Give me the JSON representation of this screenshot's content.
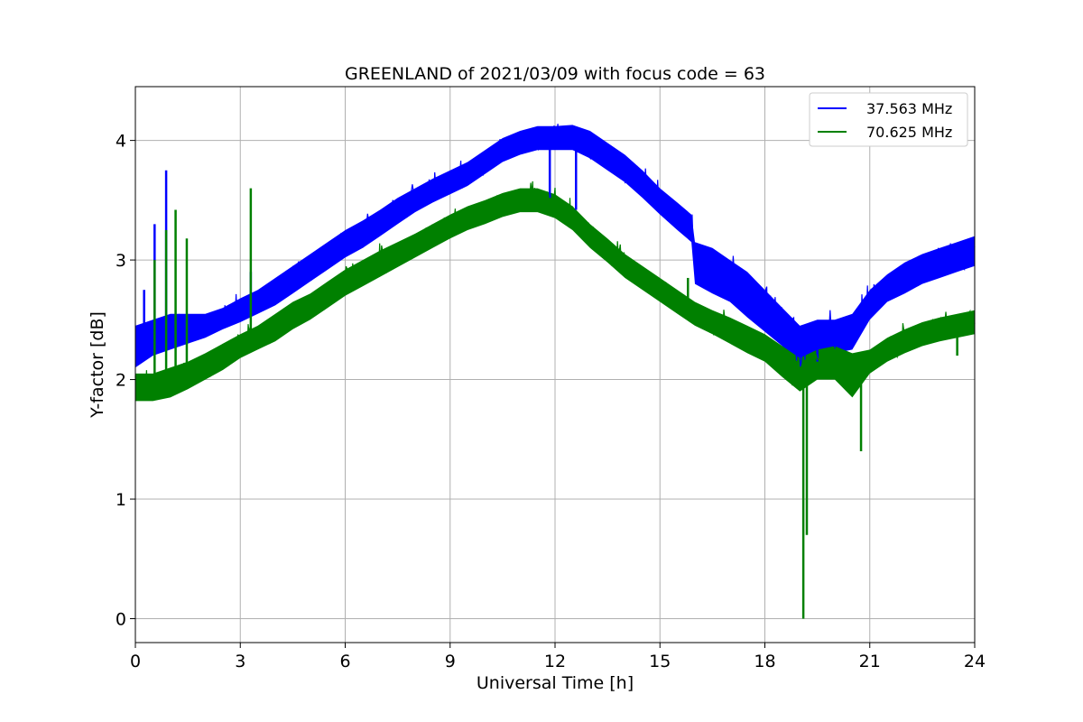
{
  "chart_data": {
    "type": "line",
    "title": "GREENLAND of 2021/03/09 with focus code = 63",
    "xlabel": "Universal Time [h]",
    "ylabel": "Y-factor [dB]",
    "xlim": [
      0,
      24
    ],
    "ylim": [
      -0.2,
      4.45
    ],
    "xticks": [
      0,
      3,
      6,
      9,
      12,
      15,
      18,
      21,
      24
    ],
    "yticks": [
      0,
      1,
      2,
      3,
      4
    ],
    "grid": true,
    "legend_position": "top-right",
    "series": [
      {
        "name": "37.563 MHz",
        "color": "#0000ff",
        "band_upper": [
          [
            0,
            2.45
          ],
          [
            0.5,
            2.5
          ],
          [
            1,
            2.55
          ],
          [
            1.5,
            2.55
          ],
          [
            2,
            2.55
          ],
          [
            2.5,
            2.6
          ],
          [
            3,
            2.68
          ],
          [
            3.5,
            2.75
          ],
          [
            4,
            2.85
          ],
          [
            4.5,
            2.95
          ],
          [
            5,
            3.05
          ],
          [
            5.5,
            3.15
          ],
          [
            6,
            3.25
          ],
          [
            6.5,
            3.33
          ],
          [
            7,
            3.42
          ],
          [
            7.5,
            3.52
          ],
          [
            8,
            3.6
          ],
          [
            8.5,
            3.68
          ],
          [
            9,
            3.75
          ],
          [
            9.5,
            3.82
          ],
          [
            10,
            3.92
          ],
          [
            10.5,
            4.02
          ],
          [
            11,
            4.08
          ],
          [
            11.5,
            4.12
          ],
          [
            12,
            4.12
          ],
          [
            12.5,
            4.13
          ],
          [
            13,
            4.08
          ],
          [
            13.5,
            3.98
          ],
          [
            14,
            3.88
          ],
          [
            14.5,
            3.75
          ],
          [
            15,
            3.6
          ],
          [
            15.5,
            3.48
          ],
          [
            15.9,
            3.38
          ],
          [
            16,
            3.15
          ],
          [
            16.5,
            3.1
          ],
          [
            17,
            3.0
          ],
          [
            17.5,
            2.9
          ],
          [
            18,
            2.75
          ],
          [
            18.5,
            2.6
          ],
          [
            19,
            2.45
          ],
          [
            19.5,
            2.5
          ],
          [
            20,
            2.5
          ],
          [
            20.5,
            2.55
          ],
          [
            21,
            2.75
          ],
          [
            21.5,
            2.88
          ],
          [
            22,
            2.98
          ],
          [
            22.5,
            3.05
          ],
          [
            23,
            3.1
          ],
          [
            23.5,
            3.15
          ],
          [
            24,
            3.2
          ]
        ],
        "band_lower": [
          [
            0,
            2.1
          ],
          [
            0.5,
            2.2
          ],
          [
            1,
            2.25
          ],
          [
            1.5,
            2.3
          ],
          [
            2,
            2.35
          ],
          [
            2.5,
            2.42
          ],
          [
            3,
            2.48
          ],
          [
            3.5,
            2.55
          ],
          [
            4,
            2.62
          ],
          [
            4.5,
            2.72
          ],
          [
            5,
            2.82
          ],
          [
            5.5,
            2.92
          ],
          [
            6,
            3.02
          ],
          [
            6.5,
            3.1
          ],
          [
            7,
            3.2
          ],
          [
            7.5,
            3.3
          ],
          [
            8,
            3.4
          ],
          [
            8.5,
            3.48
          ],
          [
            9,
            3.55
          ],
          [
            9.5,
            3.62
          ],
          [
            10,
            3.72
          ],
          [
            10.5,
            3.82
          ],
          [
            11,
            3.88
          ],
          [
            11.5,
            3.92
          ],
          [
            12,
            3.92
          ],
          [
            12.5,
            3.92
          ],
          [
            13,
            3.85
          ],
          [
            13.5,
            3.75
          ],
          [
            14,
            3.65
          ],
          [
            14.5,
            3.52
          ],
          [
            15,
            3.38
          ],
          [
            15.5,
            3.25
          ],
          [
            15.9,
            3.15
          ],
          [
            16,
            2.8
          ],
          [
            16.5,
            2.72
          ],
          [
            17,
            2.65
          ],
          [
            17.5,
            2.52
          ],
          [
            18,
            2.4
          ],
          [
            18.5,
            2.28
          ],
          [
            19,
            2.1
          ],
          [
            19.5,
            2.2
          ],
          [
            20,
            2.22
          ],
          [
            20.5,
            2.25
          ],
          [
            21,
            2.5
          ],
          [
            21.5,
            2.65
          ],
          [
            22,
            2.72
          ],
          [
            22.5,
            2.8
          ],
          [
            23,
            2.85
          ],
          [
            23.5,
            2.9
          ],
          [
            24,
            2.95
          ]
        ],
        "spikes": [
          [
            0.55,
            3.3
          ],
          [
            0.88,
            3.75
          ],
          [
            0.25,
            2.75
          ],
          [
            3.3,
            2.9
          ],
          [
            12.6,
            3.42
          ],
          [
            11.85,
            3.52
          ],
          [
            19.5,
            2.15
          ]
        ]
      },
      {
        "name": "70.625 MHz",
        "color": "#008000",
        "band_upper": [
          [
            0,
            2.05
          ],
          [
            0.5,
            2.05
          ],
          [
            1,
            2.1
          ],
          [
            1.5,
            2.15
          ],
          [
            2,
            2.22
          ],
          [
            2.5,
            2.3
          ],
          [
            3,
            2.38
          ],
          [
            3.5,
            2.45
          ],
          [
            4,
            2.55
          ],
          [
            4.5,
            2.65
          ],
          [
            5,
            2.72
          ],
          [
            5.5,
            2.82
          ],
          [
            6,
            2.92
          ],
          [
            6.5,
            3.0
          ],
          [
            7,
            3.08
          ],
          [
            7.5,
            3.15
          ],
          [
            8,
            3.22
          ],
          [
            8.5,
            3.3
          ],
          [
            9,
            3.38
          ],
          [
            9.5,
            3.45
          ],
          [
            10,
            3.5
          ],
          [
            10.5,
            3.56
          ],
          [
            11,
            3.6
          ],
          [
            11.5,
            3.6
          ],
          [
            12,
            3.55
          ],
          [
            12.5,
            3.45
          ],
          [
            13,
            3.3
          ],
          [
            13.5,
            3.18
          ],
          [
            14,
            3.05
          ],
          [
            14.5,
            2.95
          ],
          [
            15,
            2.85
          ],
          [
            15.5,
            2.75
          ],
          [
            16,
            2.65
          ],
          [
            16.5,
            2.58
          ],
          [
            17,
            2.52
          ],
          [
            17.5,
            2.45
          ],
          [
            18,
            2.38
          ],
          [
            18.5,
            2.28
          ],
          [
            19,
            2.18
          ],
          [
            19.5,
            2.25
          ],
          [
            20,
            2.28
          ],
          [
            20.5,
            2.22
          ],
          [
            21,
            2.25
          ],
          [
            21.5,
            2.35
          ],
          [
            22,
            2.42
          ],
          [
            22.5,
            2.48
          ],
          [
            23,
            2.52
          ],
          [
            23.5,
            2.55
          ],
          [
            24,
            2.58
          ]
        ],
        "band_lower": [
          [
            0,
            1.82
          ],
          [
            0.5,
            1.82
          ],
          [
            1,
            1.85
          ],
          [
            1.5,
            1.92
          ],
          [
            2,
            2.0
          ],
          [
            2.5,
            2.08
          ],
          [
            3,
            2.18
          ],
          [
            3.5,
            2.25
          ],
          [
            4,
            2.32
          ],
          [
            4.5,
            2.42
          ],
          [
            5,
            2.5
          ],
          [
            5.5,
            2.6
          ],
          [
            6,
            2.7
          ],
          [
            6.5,
            2.78
          ],
          [
            7,
            2.86
          ],
          [
            7.5,
            2.94
          ],
          [
            8,
            3.02
          ],
          [
            8.5,
            3.1
          ],
          [
            9,
            3.18
          ],
          [
            9.5,
            3.25
          ],
          [
            10,
            3.3
          ],
          [
            10.5,
            3.36
          ],
          [
            11,
            3.4
          ],
          [
            11.5,
            3.4
          ],
          [
            12,
            3.35
          ],
          [
            12.5,
            3.25
          ],
          [
            13,
            3.1
          ],
          [
            13.5,
            2.98
          ],
          [
            14,
            2.85
          ],
          [
            14.5,
            2.75
          ],
          [
            15,
            2.65
          ],
          [
            15.5,
            2.55
          ],
          [
            16,
            2.45
          ],
          [
            16.5,
            2.38
          ],
          [
            17,
            2.3
          ],
          [
            17.5,
            2.22
          ],
          [
            18,
            2.15
          ],
          [
            18.5,
            2.02
          ],
          [
            19,
            1.9
          ],
          [
            19.5,
            2.0
          ],
          [
            20,
            2.0
          ],
          [
            20.5,
            1.85
          ],
          [
            21,
            2.05
          ],
          [
            21.5,
            2.15
          ],
          [
            22,
            2.22
          ],
          [
            22.5,
            2.28
          ],
          [
            23,
            2.32
          ],
          [
            23.5,
            2.35
          ],
          [
            24,
            2.38
          ]
        ],
        "spikes": [
          [
            0.55,
            3.0
          ],
          [
            0.88,
            3.25
          ],
          [
            1.15,
            3.42
          ],
          [
            1.47,
            3.18
          ],
          [
            3.3,
            3.6
          ],
          [
            19.1,
            0.0
          ],
          [
            19.2,
            0.7
          ],
          [
            18.8,
            1.95
          ],
          [
            20.75,
            1.4
          ],
          [
            12.6,
            3.38
          ],
          [
            15.8,
            2.85
          ],
          [
            23.5,
            2.2
          ]
        ]
      }
    ]
  }
}
